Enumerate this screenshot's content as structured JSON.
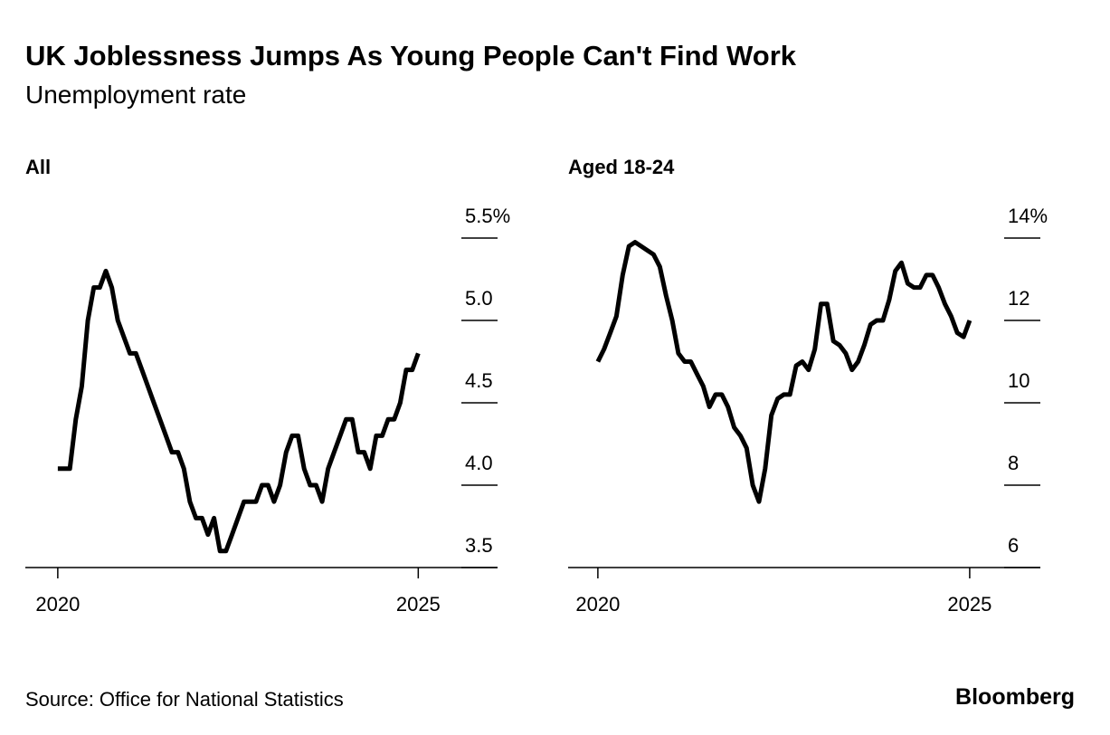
{
  "title": "UK Joblessness Jumps As Young People Can't Find Work",
  "subtitle": "Unemployment rate",
  "source": "Source: Office for National Statistics",
  "brand": "Bloomberg",
  "chart_data": [
    {
      "type": "line",
      "title": "All",
      "x": [
        2020,
        2020.083,
        2020.167,
        2020.25,
        2020.333,
        2020.417,
        2020.5,
        2020.583,
        2020.667,
        2020.75,
        2020.833,
        2020.917,
        2021,
        2021.083,
        2021.167,
        2021.25,
        2021.333,
        2021.417,
        2021.5,
        2021.583,
        2021.667,
        2021.75,
        2021.833,
        2021.917,
        2022,
        2022.083,
        2022.167,
        2022.25,
        2022.333,
        2022.417,
        2022.5,
        2022.583,
        2022.667,
        2022.75,
        2022.833,
        2022.917,
        2023,
        2023.083,
        2023.167,
        2023.25,
        2023.333,
        2023.417,
        2023.5,
        2023.583,
        2023.667,
        2023.75,
        2023.833,
        2023.917,
        2024,
        2024.083,
        2024.167,
        2024.25,
        2024.333,
        2024.417,
        2024.5,
        2024.583,
        2024.667,
        2024.75,
        2024.833,
        2024.917,
        2025
      ],
      "series": [
        {
          "color": "#000000",
          "values": [
            4.1,
            4.1,
            4.1,
            4.4,
            4.6,
            5.0,
            5.2,
            5.2,
            5.3,
            5.2,
            5.0,
            4.9,
            4.8,
            4.8,
            4.7,
            4.6,
            4.5,
            4.4,
            4.3,
            4.2,
            4.2,
            4.1,
            3.9,
            3.8,
            3.8,
            3.7,
            3.8,
            3.6,
            3.6,
            3.7,
            3.8,
            3.9,
            3.9,
            3.9,
            4.0,
            4.0,
            3.9,
            4.0,
            4.2,
            4.3,
            4.3,
            4.1,
            4.0,
            4.0,
            3.9,
            4.1,
            4.2,
            4.3,
            4.4,
            4.4,
            4.2,
            4.2,
            4.1,
            4.3,
            4.3,
            4.4,
            4.4,
            4.5,
            4.7,
            4.7,
            4.8
          ]
        }
      ],
      "xlim": [
        2019.55,
        2026.1
      ],
      "xticks": [
        2020,
        2025
      ],
      "ylim": [
        3.5,
        5.5
      ],
      "yticks": [
        3.5,
        {
          "value": 4,
          "label": "4.0"
        },
        4.5,
        {
          "value": 5,
          "label": "5.0"
        },
        {
          "value": 5.5,
          "label": "5.5%"
        }
      ]
    },
    {
      "type": "line",
      "title": "Aged 18-24",
      "x": [
        2020,
        2020.083,
        2020.167,
        2020.25,
        2020.333,
        2020.417,
        2020.5,
        2020.583,
        2020.667,
        2020.75,
        2020.833,
        2020.917,
        2021,
        2021.083,
        2021.167,
        2021.25,
        2021.333,
        2021.417,
        2021.5,
        2021.583,
        2021.667,
        2021.75,
        2021.833,
        2021.917,
        2022,
        2022.083,
        2022.167,
        2022.25,
        2022.333,
        2022.417,
        2022.5,
        2022.583,
        2022.667,
        2022.75,
        2022.833,
        2022.917,
        2023,
        2023.083,
        2023.167,
        2023.25,
        2023.333,
        2023.417,
        2023.5,
        2023.583,
        2023.667,
        2023.75,
        2023.833,
        2023.917,
        2024,
        2024.083,
        2024.167,
        2024.25,
        2024.333,
        2024.417,
        2024.5,
        2024.583,
        2024.667,
        2024.75,
        2024.833,
        2024.917,
        2025
      ],
      "series": [
        {
          "color": "#000000",
          "values": [
            11.0,
            11.3,
            11.7,
            12.1,
            13.1,
            13.8,
            13.9,
            13.8,
            13.7,
            13.6,
            13.3,
            12.6,
            12.0,
            11.2,
            11.0,
            11.0,
            10.7,
            10.4,
            9.9,
            10.2,
            10.2,
            9.9,
            9.4,
            9.2,
            8.9,
            8.0,
            7.6,
            8.4,
            9.7,
            10.1,
            10.2,
            10.2,
            10.9,
            11.0,
            10.8,
            11.3,
            12.4,
            12.4,
            11.5,
            11.4,
            11.2,
            10.8,
            11.0,
            11.4,
            11.9,
            12.0,
            12.0,
            12.5,
            13.2,
            13.4,
            12.9,
            12.8,
            12.8,
            13.1,
            13.1,
            12.8,
            12.4,
            12.1,
            11.7,
            11.6,
            12.0
          ]
        }
      ],
      "xlim": [
        2019.6,
        2025.95
      ],
      "xticks": [
        2020,
        2025
      ],
      "ylim": [
        6,
        14
      ],
      "yticks": [
        6,
        8,
        10,
        12,
        {
          "value": 14,
          "label": "14%"
        }
      ]
    }
  ]
}
